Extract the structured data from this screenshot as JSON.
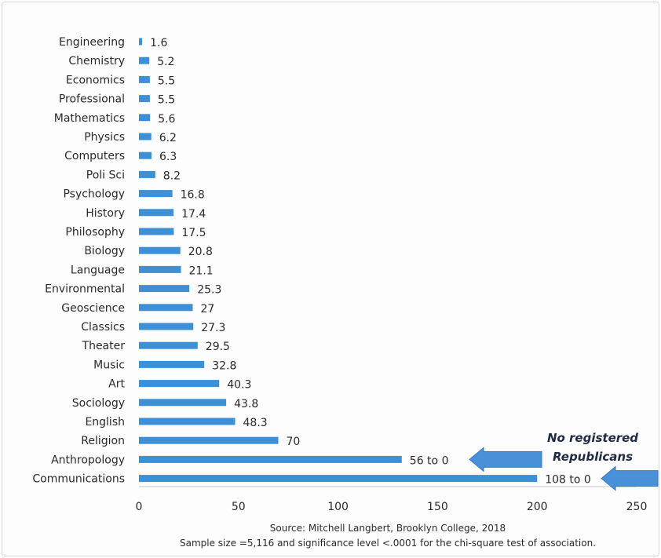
{
  "chart_data": {
    "type": "bar",
    "orientation": "horizontal",
    "categories": [
      "Engineering",
      "Chemistry",
      "Economics",
      "Professional",
      "Mathematics",
      "Physics",
      "Computers",
      "Poli Sci",
      "Psychology",
      "History",
      "Philosophy",
      "Biology",
      "Language",
      "Environmental",
      "Geoscience",
      "Classics",
      "Theater",
      "Music",
      "Art",
      "Sociology",
      "English",
      "Religion",
      "Anthropology",
      "Communications"
    ],
    "values": [
      1.6,
      5.2,
      5.5,
      5.5,
      5.6,
      6.2,
      6.3,
      8.2,
      16.8,
      17.4,
      17.5,
      20.8,
      21.1,
      25.3,
      27,
      27.3,
      29.5,
      32.8,
      40.3,
      43.8,
      48.3,
      70,
      132,
      200
    ],
    "data_labels": [
      "1.6",
      "5.2",
      "5.5",
      "5.5",
      "5.6",
      "6.2",
      "6.3",
      "8.2",
      "16.8",
      "17.4",
      "17.5",
      "20.8",
      "21.1",
      "25.3",
      "27",
      "27.3",
      "29.5",
      "32.8",
      "40.3",
      "43.8",
      "48.3",
      "70",
      "56 to 0",
      "108 to 0"
    ],
    "xlim": [
      0,
      250
    ],
    "xticks": [
      0,
      50,
      100,
      150,
      200,
      250
    ],
    "title": "",
    "xlabel": "",
    "ylabel": "",
    "grid": false,
    "bar_color": "#3d8fd6",
    "annotation": {
      "text_lines": [
        "No registered",
        "Republicans"
      ],
      "arrow_targets": [
        "Anthropology",
        "Communications"
      ],
      "arrow_color": "#4a90d9"
    },
    "source_lines": [
      "Source: Mitchell Langbert, Brooklyn College, 2018",
      "Sample size =5,116 and significance level <.0001 for the chi-square test of association."
    ]
  }
}
